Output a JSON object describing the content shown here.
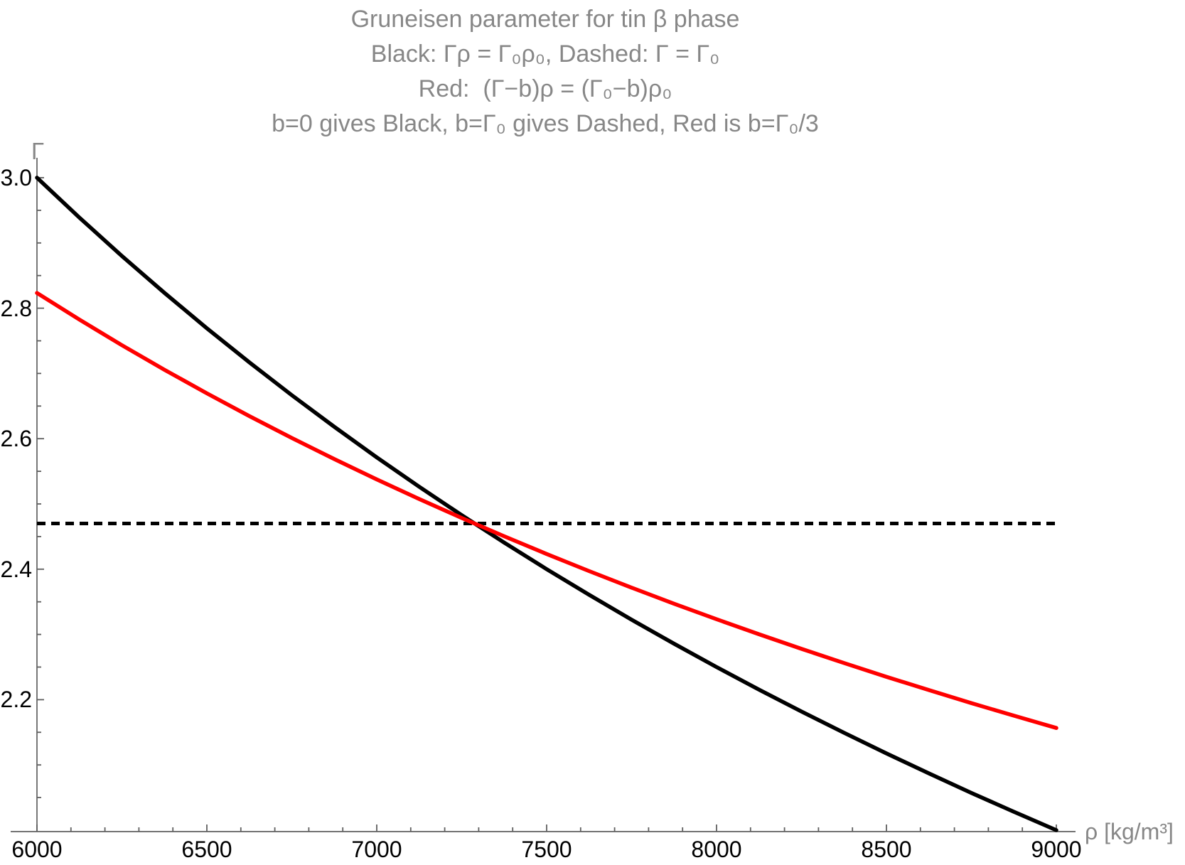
{
  "chart_data": {
    "type": "line",
    "title_lines": [
      "Gruneisen parameter for tin β phase",
      "Black: Γρ = Γ₀ρ₀, Dashed: Γ = Γ₀",
      "Red:  (Γ−b)ρ = (Γ₀−b)ρ₀",
      "b=0 gives Black, b=Γ₀ gives Dashed, Red is b=Γ₀/3"
    ],
    "title_color": "#878787",
    "xlabel": "ρ [kg/m³]",
    "ylabel": "Γ",
    "axis_label_color": "#878787",
    "tick_label_color": "#000000",
    "axis_color": "#5f5f5f",
    "grid": false,
    "legend": "none (curves identified in title)",
    "xlim": [
      6000,
      9000
    ],
    "ylim": [
      2.0,
      3.0
    ],
    "x_ticks": {
      "major_values": [
        6000,
        6500,
        7000,
        7500,
        8000,
        8500,
        9000
      ],
      "major_labels": [
        "6000",
        "6500",
        "7000",
        "7500",
        "8000",
        "8500",
        "9000"
      ],
      "minor_step": 100
    },
    "y_ticks": {
      "major_values": [
        2.2,
        2.4,
        2.6,
        2.8,
        3.0
      ],
      "major_labels": [
        "2.2",
        "2.4",
        "2.6",
        "2.8",
        "3.0"
      ],
      "minor_step": 0.05
    },
    "series": [
      {
        "name": "dashed",
        "label": "Γ = Γ₀ (constant)",
        "color": "#000000",
        "dash": true,
        "x": [
          6000,
          9000
        ],
        "y": [
          2.47,
          2.47
        ]
      },
      {
        "name": "black",
        "label": "Γρ = Γ₀ρ₀",
        "color": "#000000",
        "dash": false,
        "x": [
          6000,
          6125,
          6250,
          6375,
          6500,
          6625,
          6750,
          6875,
          7000,
          7125,
          7250,
          7375,
          7500,
          7625,
          7750,
          7875,
          8000,
          8125,
          8250,
          8375,
          8500,
          8625,
          8750,
          8875,
          9000
        ],
        "y": [
          3.0,
          2.9388,
          2.88,
          2.8235,
          2.7692,
          2.717,
          2.6667,
          2.6182,
          2.5714,
          2.5263,
          2.4828,
          2.4407,
          2.4,
          2.3607,
          2.3226,
          2.2857,
          2.25,
          2.2154,
          2.1818,
          2.1493,
          2.1176,
          2.087,
          2.0571,
          2.0282,
          2.0
        ]
      },
      {
        "name": "red",
        "label": "(Γ−b)ρ = (Γ₀−b)ρ₀ with b=Γ₀/3",
        "color": "#ff0000",
        "dash": false,
        "x": [
          6000,
          6125,
          6250,
          6375,
          6500,
          6625,
          6750,
          6875,
          7000,
          7125,
          7250,
          7375,
          7500,
          7625,
          7750,
          7875,
          8000,
          8125,
          8250,
          8375,
          8500,
          8625,
          8750,
          8875,
          9000
        ],
        "y": [
          2.8233,
          2.7825,
          2.7433,
          2.7057,
          2.6695,
          2.6346,
          2.6011,
          2.5687,
          2.5376,
          2.5075,
          2.4785,
          2.4504,
          2.4233,
          2.3971,
          2.3717,
          2.3471,
          2.3233,
          2.3002,
          2.2779,
          2.2562,
          2.2351,
          2.2147,
          2.1947,
          2.1755,
          2.1566
        ]
      }
    ],
    "intersection": {
      "rho": 7287,
      "gamma": 2.47
    }
  }
}
